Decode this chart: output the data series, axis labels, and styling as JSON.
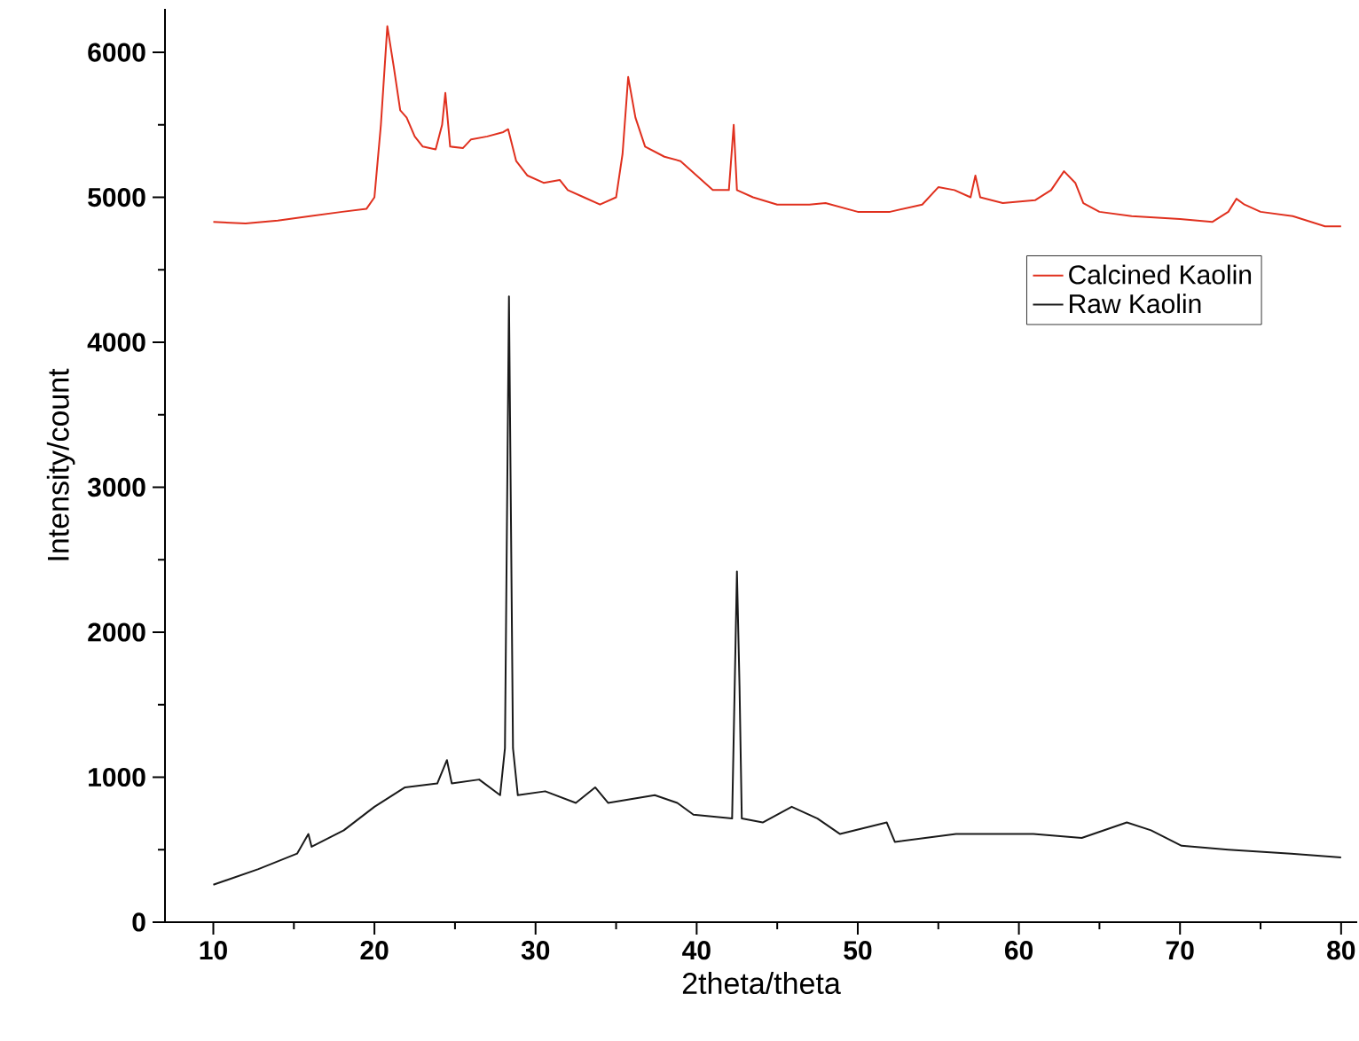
{
  "chart_data": {
    "type": "line",
    "xlabel": "2theta/theta",
    "ylabel": "Intensity/count",
    "xlim": [
      7,
      81
    ],
    "ylim": [
      0,
      6300
    ],
    "xticks": [
      10,
      20,
      30,
      40,
      50,
      60,
      70,
      80
    ],
    "yticks": [
      0,
      1000,
      2000,
      3000,
      4000,
      5000,
      6000
    ],
    "legend": "right",
    "grid": false,
    "marker": "none",
    "line_style": "solid",
    "series": [
      {
        "name": "Calcined Kaolin",
        "color": "#e0301e",
        "x": [
          10,
          12,
          14,
          16,
          18,
          19.5,
          20,
          20.4,
          20.8,
          21.2,
          21.6,
          22,
          22.5,
          23,
          23.8,
          24.2,
          24.4,
          24.7,
          25.5,
          26,
          27,
          28,
          28.3,
          28.8,
          29.5,
          30.5,
          31.5,
          32,
          33,
          34,
          35,
          35.4,
          35.75,
          36.2,
          36.8,
          38,
          39,
          40,
          41,
          42,
          42.3,
          42.5,
          43.5,
          45,
          47,
          48,
          50,
          52,
          54,
          55,
          56,
          57,
          57.3,
          57.6,
          59,
          61,
          62,
          62.8,
          63.5,
          64,
          65,
          67,
          70,
          72,
          73,
          73.5,
          74,
          75,
          77,
          79,
          80
        ],
        "values": [
          4830,
          4820,
          4840,
          4870,
          4900,
          4920,
          5000,
          5500,
          6180,
          5900,
          5600,
          5550,
          5420,
          5350,
          5330,
          5500,
          5720,
          5350,
          5340,
          5400,
          5420,
          5450,
          5470,
          5250,
          5150,
          5100,
          5120,
          5050,
          5000,
          4950,
          5000,
          5300,
          5830,
          5550,
          5350,
          5280,
          5250,
          5150,
          5050,
          5050,
          5500,
          5050,
          5000,
          4950,
          4950,
          4960,
          4900,
          4900,
          4950,
          5070,
          5050,
          5000,
          5150,
          5000,
          4960,
          4980,
          5050,
          5180,
          5100,
          4960,
          4900,
          4870,
          4850,
          4830,
          4900,
          4990,
          4950,
          4900,
          4870,
          4800,
          4800
        ]
      },
      {
        "name": "Raw Kaolin",
        "color": "#1a1a1a",
        "x": [
          10,
          12.8,
          15.2,
          15.9,
          16.1,
          18.1,
          20,
          21.9,
          23.9,
          24.5,
          24.8,
          26.5,
          27.8,
          28.1,
          28.35,
          28.6,
          28.9,
          30.6,
          32.5,
          33.7,
          34.5,
          37.4,
          38.8,
          39.8,
          42.2,
          42.5,
          42.66,
          42.8,
          44.1,
          45.9,
          47.5,
          48.9,
          51.8,
          52.3,
          56.1,
          60.9,
          63.9,
          66.7,
          68.2,
          70.1,
          73,
          76.9,
          80
        ],
        "values": [
          258,
          366,
          473,
          608,
          520,
          634,
          796,
          930,
          957,
          1118,
          957,
          984,
          876,
          1199,
          4317,
          1199,
          876,
          903,
          823,
          930,
          823,
          876,
          823,
          742,
          715,
          2419,
          1629,
          715,
          688,
          796,
          715,
          608,
          688,
          554,
          608,
          608,
          581,
          688,
          634,
          527,
          500,
          473,
          446
        ]
      }
    ]
  }
}
